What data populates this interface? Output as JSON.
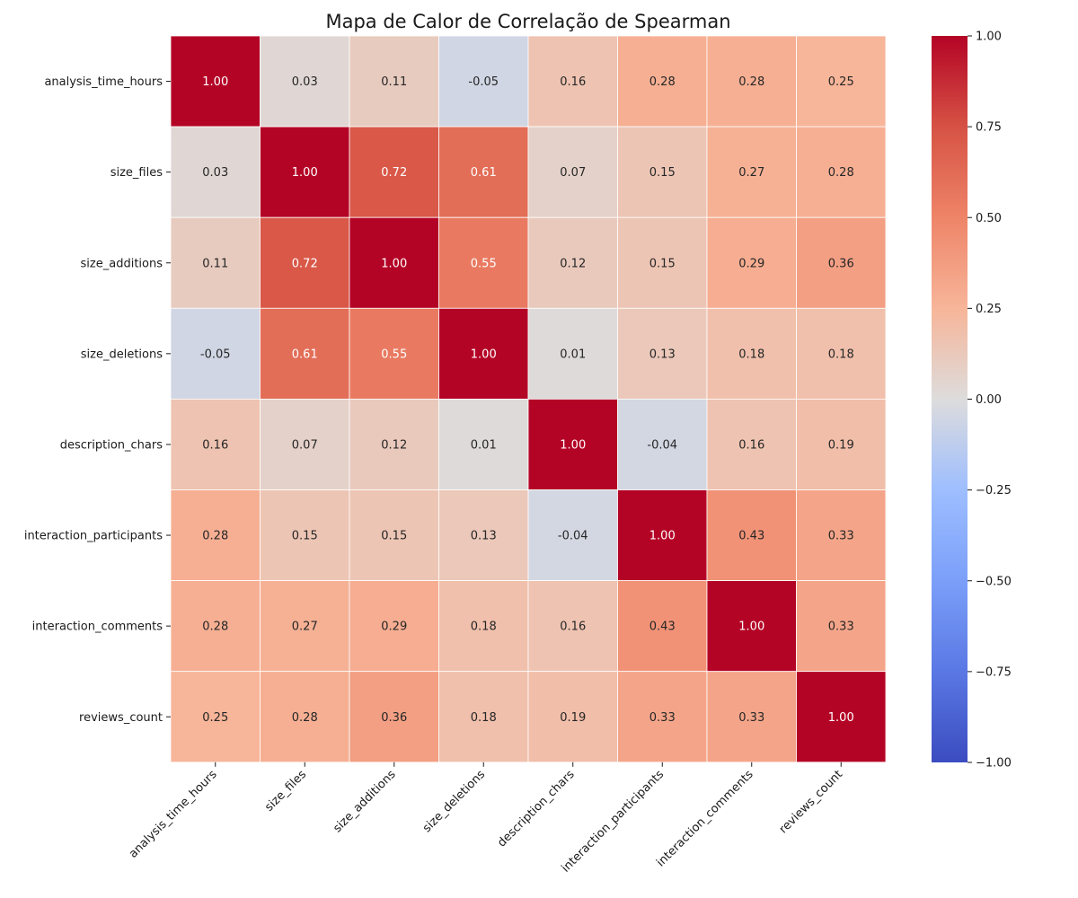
{
  "chart_data": {
    "type": "heatmap",
    "title": "Mapa de Calor de Correlação de Spearman",
    "colormap": "coolwarm",
    "vmin": -1.0,
    "vmax": 1.0,
    "legend_position": "right",
    "grid": false,
    "rows": [
      "analysis_time_hours",
      "size_files",
      "size_additions",
      "size_deletions",
      "description_chars",
      "interaction_participants",
      "interaction_comments",
      "reviews_count"
    ],
    "columns": [
      "analysis_time_hours",
      "size_files",
      "size_additions",
      "size_deletions",
      "description_chars",
      "interaction_participants",
      "interaction_comments",
      "reviews_count"
    ],
    "values": [
      [
        1.0,
        0.03,
        0.11,
        -0.05,
        0.16,
        0.28,
        0.28,
        0.25
      ],
      [
        0.03,
        1.0,
        0.72,
        0.61,
        0.07,
        0.15,
        0.27,
        0.28
      ],
      [
        0.11,
        0.72,
        1.0,
        0.55,
        0.12,
        0.15,
        0.29,
        0.36
      ],
      [
        -0.05,
        0.61,
        0.55,
        1.0,
        0.01,
        0.13,
        0.18,
        0.18
      ],
      [
        0.16,
        0.07,
        0.12,
        0.01,
        1.0,
        -0.04,
        0.16,
        0.19
      ],
      [
        0.28,
        0.15,
        0.15,
        0.13,
        -0.04,
        1.0,
        0.43,
        0.33
      ],
      [
        0.28,
        0.27,
        0.29,
        0.18,
        0.16,
        0.43,
        1.0,
        0.33
      ],
      [
        0.25,
        0.28,
        0.36,
        0.18,
        0.19,
        0.33,
        0.33,
        1.0
      ]
    ],
    "colorbar_ticks": [
      "1.00",
      "0.75",
      "0.50",
      "0.25",
      "0.00",
      "−0.25",
      "−0.50",
      "−0.75",
      "−1.00"
    ],
    "colorbar_tick_values": [
      1.0,
      0.75,
      0.5,
      0.25,
      0.0,
      -0.25,
      -0.5,
      -0.75,
      -1.0
    ]
  }
}
